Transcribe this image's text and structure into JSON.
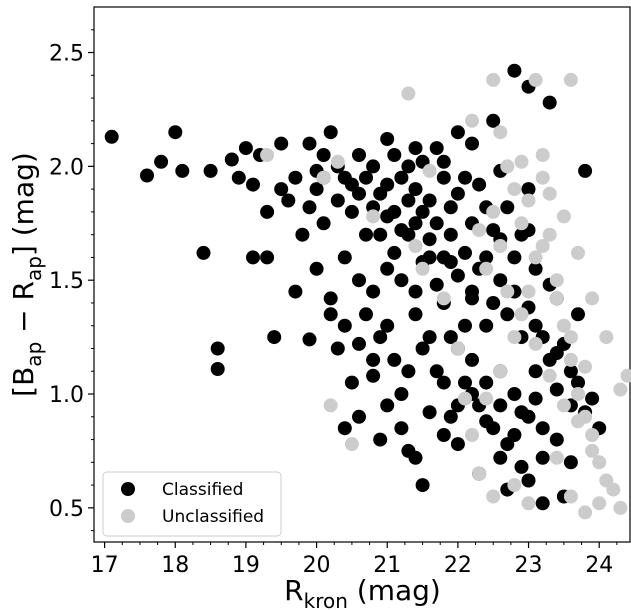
{
  "chart_data": {
    "type": "scatter",
    "title": "",
    "xlabel": {
      "main": "R",
      "sub": "kron",
      "unit": " (mag)"
    },
    "ylabel": {
      "open": "[B",
      "sub1": "ap",
      "mid": " − R",
      "sub2": "ap",
      "close": "] (mag)"
    },
    "xlim": [
      16.85,
      24.45
    ],
    "ylim": [
      0.35,
      2.7
    ],
    "xticks": [
      "17",
      "18",
      "19",
      "20",
      "21",
      "22",
      "23",
      "24"
    ],
    "yticks": [
      "0.5",
      "1.0",
      "1.5",
      "2.0",
      "2.5"
    ],
    "legend_position": "lower-left",
    "series": [
      {
        "name": "Classified",
        "color": "#000000",
        "points": [
          [
            17.1,
            2.13
          ],
          [
            17.6,
            1.96
          ],
          [
            17.8,
            2.02
          ],
          [
            18.0,
            2.15
          ],
          [
            18.1,
            1.98
          ],
          [
            18.4,
            1.62
          ],
          [
            18.5,
            1.98
          ],
          [
            18.6,
            1.2
          ],
          [
            18.6,
            1.11
          ],
          [
            18.8,
            2.03
          ],
          [
            18.9,
            1.95
          ],
          [
            19.0,
            2.08
          ],
          [
            19.1,
            1.6
          ],
          [
            19.2,
            2.05
          ],
          [
            19.3,
            1.6
          ],
          [
            19.4,
            1.25
          ],
          [
            19.5,
            1.9
          ],
          [
            19.7,
            1.45
          ],
          [
            19.9,
            1.24
          ],
          [
            20.0,
            1.98
          ],
          [
            20.1,
            2.05
          ],
          [
            20.2,
            1.35
          ],
          [
            20.3,
            1.2
          ],
          [
            20.4,
            0.85
          ],
          [
            20.5,
            1.05
          ],
          [
            20.6,
            0.9
          ],
          [
            20.8,
            1.15
          ],
          [
            20.9,
            0.8
          ],
          [
            21.0,
            1.3
          ],
          [
            21.2,
            1.0
          ],
          [
            21.3,
            0.75
          ],
          [
            21.4,
            1.45
          ],
          [
            21.5,
            0.6
          ],
          [
            21.6,
            1.6
          ],
          [
            21.8,
            1.05
          ],
          [
            21.9,
            0.9
          ],
          [
            22.0,
            2.15
          ],
          [
            22.0,
            0.78
          ],
          [
            22.1,
            1.3
          ],
          [
            22.2,
            1.45
          ],
          [
            22.3,
            0.65
          ],
          [
            22.4,
            1.05
          ],
          [
            22.5,
            2.2
          ],
          [
            22.6,
            0.72
          ],
          [
            22.7,
            0.58
          ],
          [
            22.8,
            2.42
          ],
          [
            22.9,
            0.68
          ],
          [
            23.0,
            2.35
          ],
          [
            23.1,
            1.1
          ],
          [
            23.2,
            0.52
          ],
          [
            23.3,
            2.28
          ],
          [
            23.4,
            1.42
          ],
          [
            23.5,
            0.55
          ],
          [
            23.6,
            0.95
          ],
          [
            23.7,
            1.35
          ],
          [
            23.8,
            1.98
          ],
          [
            20.1,
            1.75
          ],
          [
            20.3,
            1.85
          ],
          [
            20.5,
            1.92
          ],
          [
            20.7,
            1.95
          ],
          [
            20.8,
            2.0
          ],
          [
            20.9,
            1.88
          ],
          [
            21.0,
            1.92
          ],
          [
            21.1,
            2.05
          ],
          [
            21.2,
            1.95
          ],
          [
            21.3,
            1.85
          ],
          [
            21.4,
            1.9
          ],
          [
            21.5,
            1.8
          ],
          [
            21.6,
            1.85
          ],
          [
            21.7,
            1.75
          ],
          [
            21.8,
            1.95
          ],
          [
            21.9,
            1.7
          ],
          [
            22.0,
            1.88
          ],
          [
            22.2,
            1.75
          ],
          [
            22.4,
            1.82
          ],
          [
            22.6,
            1.68
          ],
          [
            22.8,
            1.6
          ],
          [
            23.0,
            1.72
          ],
          [
            20.4,
            1.6
          ],
          [
            20.6,
            1.5
          ],
          [
            20.8,
            1.45
          ],
          [
            21.0,
            1.55
          ],
          [
            21.2,
            1.5
          ],
          [
            21.4,
            1.35
          ],
          [
            21.6,
            1.25
          ],
          [
            21.8,
            1.4
          ],
          [
            22.0,
            1.2
          ],
          [
            22.2,
            1.15
          ],
          [
            22.4,
            1.3
          ],
          [
            22.6,
            1.1
          ],
          [
            22.8,
            1.0
          ],
          [
            23.0,
            0.9
          ],
          [
            23.2,
            0.85
          ],
          [
            23.4,
            0.8
          ],
          [
            23.6,
            0.7
          ],
          [
            19.5,
            2.1
          ],
          [
            19.7,
            1.95
          ],
          [
            19.9,
            2.1
          ],
          [
            20.2,
            2.15
          ],
          [
            20.6,
            2.05
          ],
          [
            21.0,
            2.12
          ],
          [
            21.4,
            2.08
          ],
          [
            21.8,
            2.02
          ],
          [
            22.2,
            2.1
          ],
          [
            22.6,
            1.98
          ],
          [
            23.0,
            1.9
          ],
          [
            19.8,
            1.7
          ],
          [
            20.0,
            1.55
          ],
          [
            20.2,
            1.42
          ],
          [
            20.4,
            1.3
          ],
          [
            20.6,
            1.22
          ],
          [
            20.8,
            1.08
          ],
          [
            21.0,
            0.95
          ],
          [
            21.2,
            0.85
          ],
          [
            21.4,
            0.72
          ],
          [
            21.6,
            0.92
          ],
          [
            21.8,
            0.82
          ],
          [
            22.0,
            0.95
          ],
          [
            22.2,
            1.0
          ],
          [
            22.4,
            0.88
          ],
          [
            22.6,
            0.95
          ],
          [
            22.8,
            0.82
          ],
          [
            23.0,
            0.62
          ],
          [
            23.2,
            0.72
          ],
          [
            23.4,
            1.02
          ],
          [
            19.6,
            1.85
          ],
          [
            19.3,
            1.8
          ],
          [
            19.1,
            1.92
          ],
          [
            20.9,
            1.7
          ],
          [
            21.1,
            1.62
          ],
          [
            21.3,
            1.7
          ],
          [
            21.5,
            1.58
          ],
          [
            21.7,
            1.48
          ],
          [
            21.9,
            1.58
          ],
          [
            22.1,
            1.62
          ],
          [
            22.3,
            1.55
          ],
          [
            22.5,
            1.4
          ],
          [
            22.7,
            1.35
          ],
          [
            22.9,
            1.25
          ],
          [
            23.1,
            1.3
          ],
          [
            23.3,
            1.15
          ],
          [
            20.7,
            1.35
          ],
          [
            20.9,
            1.25
          ],
          [
            21.1,
            1.15
          ],
          [
            21.3,
            1.1
          ],
          [
            21.5,
            1.2
          ],
          [
            21.7,
            1.1
          ],
          [
            21.9,
            1.25
          ],
          [
            22.1,
            1.05
          ],
          [
            22.3,
            0.95
          ],
          [
            22.5,
            0.85
          ],
          [
            22.7,
            0.78
          ],
          [
            22.9,
            0.92
          ],
          [
            23.1,
            0.98
          ],
          [
            20.3,
            2.0
          ],
          [
            20.5,
            1.8
          ],
          [
            20.7,
            1.7
          ],
          [
            21.1,
            1.8
          ],
          [
            21.3,
            2.0
          ],
          [
            21.5,
            2.02
          ],
          [
            21.7,
            2.08
          ],
          [
            21.9,
            1.82
          ],
          [
            22.1,
            1.95
          ],
          [
            22.3,
            1.92
          ],
          [
            22.5,
            1.72
          ],
          [
            22.7,
            1.82
          ],
          [
            22.9,
            1.7
          ],
          [
            23.1,
            1.55
          ],
          [
            23.3,
            1.48
          ],
          [
            23.5,
            1.22
          ],
          [
            23.7,
            1.05
          ],
          [
            23.9,
            0.98
          ],
          [
            24.0,
            0.85
          ],
          [
            20.0,
            1.9
          ],
          [
            19.9,
            1.82
          ],
          [
            20.1,
            1.95
          ],
          [
            20.4,
            1.95
          ],
          [
            20.6,
            1.88
          ],
          [
            20.8,
            1.82
          ],
          [
            21.0,
            1.78
          ],
          [
            21.2,
            1.72
          ],
          [
            21.4,
            1.75
          ],
          [
            21.6,
            1.68
          ],
          [
            21.8,
            1.6
          ],
          [
            22.0,
            1.52
          ],
          [
            22.2,
            1.42
          ],
          [
            22.4,
            1.6
          ],
          [
            22.6,
            1.5
          ],
          [
            22.8,
            1.45
          ],
          [
            23.0,
            1.38
          ],
          [
            23.2,
            1.25
          ],
          [
            23.4,
            1.18
          ],
          [
            23.6,
            1.1
          ],
          [
            23.8,
            0.92
          ]
        ]
      },
      {
        "name": "Unclassified",
        "color": "#cccccc",
        "points": [
          [
            20.1,
            1.95
          ],
          [
            20.3,
            2.02
          ],
          [
            20.8,
            1.78
          ],
          [
            21.3,
            2.32
          ],
          [
            21.4,
            1.65
          ],
          [
            21.5,
            1.55
          ],
          [
            21.8,
            1.42
          ],
          [
            22.0,
            1.2
          ],
          [
            22.1,
            0.98
          ],
          [
            22.2,
            0.82
          ],
          [
            22.3,
            1.72
          ],
          [
            22.4,
            1.55
          ],
          [
            22.5,
            1.8
          ],
          [
            22.6,
            1.65
          ],
          [
            22.7,
            1.45
          ],
          [
            22.8,
            1.9
          ],
          [
            22.9,
            1.75
          ],
          [
            23.0,
            1.85
          ],
          [
            23.1,
            1.6
          ],
          [
            23.2,
            1.95
          ],
          [
            23.3,
            1.7
          ],
          [
            23.4,
            1.5
          ],
          [
            23.5,
            1.3
          ],
          [
            23.6,
            1.15
          ],
          [
            23.7,
            1.0
          ],
          [
            23.8,
            0.9
          ],
          [
            23.9,
            0.82
          ],
          [
            24.0,
            0.7
          ],
          [
            24.1,
            0.62
          ],
          [
            24.2,
            0.58
          ],
          [
            24.3,
            0.5
          ],
          [
            24.4,
            1.08
          ],
          [
            23.6,
            2.38
          ],
          [
            23.2,
            2.05
          ],
          [
            22.9,
            2.02
          ],
          [
            22.6,
            2.15
          ],
          [
            23.0,
            1.45
          ],
          [
            22.8,
            1.25
          ],
          [
            22.6,
            1.1
          ],
          [
            22.4,
            0.98
          ],
          [
            23.4,
            0.72
          ],
          [
            23.6,
            0.55
          ],
          [
            23.8,
            0.48
          ],
          [
            20.5,
            0.78
          ],
          [
            20.2,
            0.95
          ],
          [
            19.3,
            2.05
          ],
          [
            21.6,
            1.98
          ],
          [
            22.2,
            2.2
          ],
          [
            22.5,
            2.38
          ],
          [
            23.1,
            2.38
          ],
          [
            23.3,
            1.88
          ],
          [
            23.5,
            1.78
          ],
          [
            23.7,
            1.62
          ],
          [
            23.9,
            1.42
          ],
          [
            24.1,
            1.25
          ],
          [
            24.3,
            1.02
          ],
          [
            22.7,
            2.0
          ],
          [
            22.9,
            1.35
          ],
          [
            23.1,
            1.22
          ],
          [
            23.3,
            1.08
          ],
          [
            23.5,
            0.95
          ],
          [
            23.7,
            0.88
          ],
          [
            23.9,
            0.75
          ],
          [
            24.0,
            0.52
          ],
          [
            22.3,
            0.65
          ],
          [
            22.5,
            0.55
          ],
          [
            22.8,
            0.6
          ],
          [
            23.0,
            0.52
          ],
          [
            23.2,
            1.65
          ],
          [
            23.4,
            1.42
          ],
          [
            23.6,
            1.25
          ],
          [
            23.8,
            1.12
          ]
        ]
      }
    ]
  }
}
